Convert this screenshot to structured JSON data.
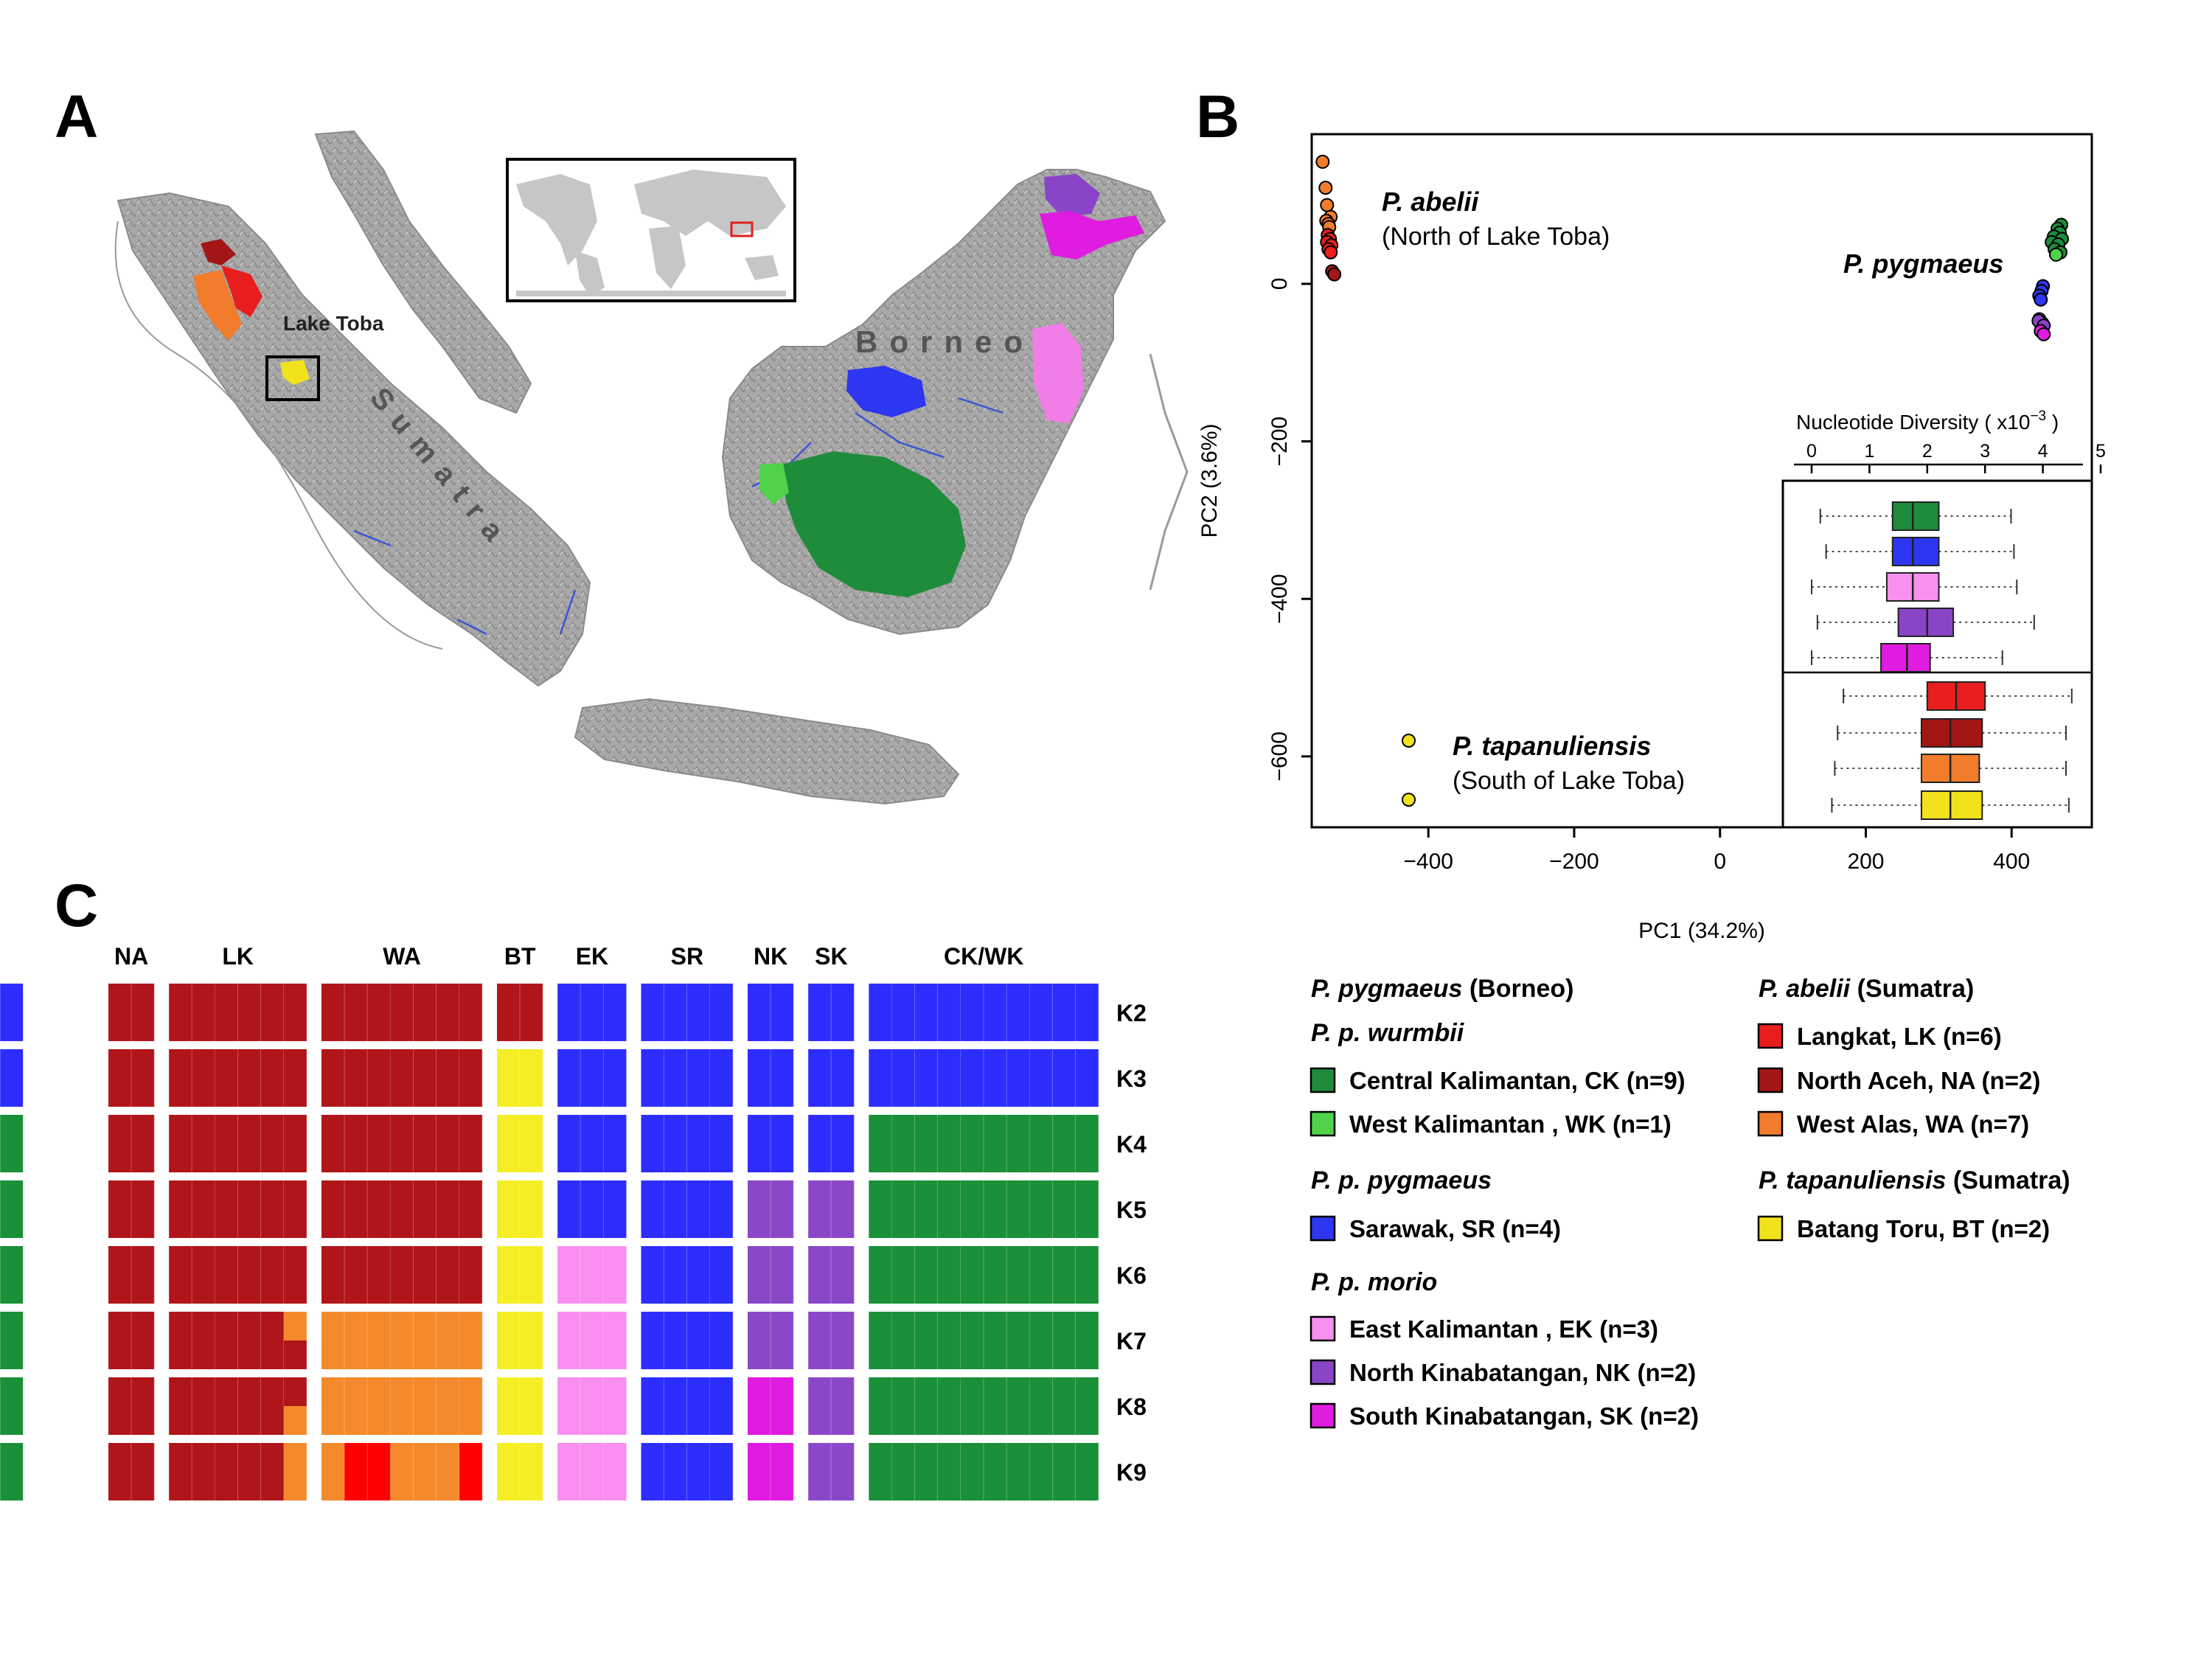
{
  "panels": {
    "a": "A",
    "b": "B",
    "c": "C"
  },
  "map": {
    "labels": {
      "lake_toba": "Lake Toba",
      "borneo": "Borneo",
      "sumatra": "Sumatra"
    },
    "colors": {
      "land": "#a8a8a8",
      "inset_land": "#c6c6c6",
      "river": "#3a56d4",
      "NA": "#a31616",
      "LK": "#e81e1e",
      "WA": "#f07c2c",
      "BT": "#f2e21e",
      "CK": "#1e8c3a",
      "WK": "#50d24a",
      "SR": "#2d36f0",
      "NK": "#8a44c8",
      "SK": "#e01ce0",
      "EK": "#f07ee6"
    }
  },
  "pca": {
    "x_axis_label": "PC1 (34.2%)",
    "y_axis_label": "PC2 (3.6%)",
    "x_ticks": [
      "−400",
      "−200",
      "0",
      "200",
      "400"
    ],
    "y_ticks": [
      "0",
      "−200",
      "−400",
      "−600"
    ],
    "labels": {
      "abelii_name": "P. abelii",
      "abelii_note": "(North of Lake Toba)",
      "pygmaeus_name": "P. pygmaeus",
      "tapanuliensis_name": "P. tapanuliensis",
      "tapanuliensis_note": "(South of Lake Toba)"
    },
    "inset": {
      "title": "Nucleotide Diversity ( x10",
      "title_exp": "−3",
      "title_end": " )",
      "ticks": [
        "0",
        "1",
        "2",
        "3",
        "4",
        "5"
      ]
    }
  },
  "chart_data": [
    {
      "type": "scatter",
      "xlabel": "PC1 (34.2%)",
      "ylabel": "PC2 (3.6%)",
      "xlim": [
        -560,
        510
      ],
      "ylim": [
        -690,
        190
      ],
      "series": [
        {
          "name": "P. abelii",
          "points": [
            {
              "x": -545,
              "y": 155,
              "pop": "WA"
            },
            {
              "x": -541,
              "y": 122,
              "pop": "WA"
            },
            {
              "x": -539,
              "y": 100,
              "pop": "WA"
            },
            {
              "x": -534,
              "y": 85,
              "pop": "WA"
            },
            {
              "x": -540,
              "y": 80,
              "pop": "WA"
            },
            {
              "x": -537,
              "y": 76,
              "pop": "WA"
            },
            {
              "x": -536,
              "y": 72,
              "pop": "WA"
            },
            {
              "x": -538,
              "y": 62,
              "pop": "LK"
            },
            {
              "x": -535,
              "y": 57,
              "pop": "LK"
            },
            {
              "x": -539,
              "y": 53,
              "pop": "LK"
            },
            {
              "x": -533,
              "y": 49,
              "pop": "LK"
            },
            {
              "x": -537,
              "y": 44,
              "pop": "LK"
            },
            {
              "x": -534,
              "y": 40,
              "pop": "LK"
            },
            {
              "x": -532,
              "y": 16,
              "pop": "NA"
            },
            {
              "x": -529,
              "y": 12,
              "pop": "NA"
            }
          ]
        },
        {
          "name": "P. pygmaeus",
          "points": [
            {
              "x": 468,
              "y": 75,
              "pop": "CK"
            },
            {
              "x": 463,
              "y": 70,
              "pop": "CK"
            },
            {
              "x": 466,
              "y": 65,
              "pop": "CK"
            },
            {
              "x": 458,
              "y": 60,
              "pop": "CK"
            },
            {
              "x": 469,
              "y": 57,
              "pop": "CK"
            },
            {
              "x": 455,
              "y": 53,
              "pop": "CK"
            },
            {
              "x": 464,
              "y": 50,
              "pop": "CK"
            },
            {
              "x": 459,
              "y": 44,
              "pop": "CK"
            },
            {
              "x": 467,
              "y": 40,
              "pop": "CK"
            },
            {
              "x": 461,
              "y": 37,
              "pop": "WK"
            },
            {
              "x": 443,
              "y": -3,
              "pop": "SR"
            },
            {
              "x": 441,
              "y": -9,
              "pop": "SR"
            },
            {
              "x": 438,
              "y": -15,
              "pop": "SR"
            },
            {
              "x": 440,
              "y": -20,
              "pop": "SR"
            },
            {
              "x": 438,
              "y": -45,
              "pop": "EK"
            },
            {
              "x": 442,
              "y": -50,
              "pop": "EK"
            },
            {
              "x": 441,
              "y": -56,
              "pop": "EK"
            },
            {
              "x": 437,
              "y": -47,
              "pop": "NK"
            },
            {
              "x": 444,
              "y": -53,
              "pop": "NK"
            },
            {
              "x": 440,
              "y": -60,
              "pop": "SK"
            },
            {
              "x": 444,
              "y": -64,
              "pop": "SK"
            }
          ]
        },
        {
          "name": "P. tapanuliensis",
          "points": [
            {
              "x": -427,
              "y": -580,
              "pop": "BT"
            },
            {
              "x": -427,
              "y": -655,
              "pop": "BT"
            }
          ]
        }
      ]
    },
    {
      "type": "boxplot",
      "title": "Nucleotide Diversity ( x10−3 )",
      "xlim": [
        0,
        5
      ],
      "groups": [
        {
          "pop": "CK",
          "whisker_low": 0.15,
          "q1": 1.4,
          "median": 1.75,
          "q3": 2.2,
          "whisker_high": 3.45
        },
        {
          "pop": "SR",
          "whisker_low": 0.25,
          "q1": 1.4,
          "median": 1.75,
          "q3": 2.2,
          "whisker_high": 3.5
        },
        {
          "pop": "EK",
          "whisker_low": 0.0,
          "q1": 1.3,
          "median": 1.75,
          "q3": 2.2,
          "whisker_high": 3.55
        },
        {
          "pop": "NK",
          "whisker_low": 0.1,
          "q1": 1.5,
          "median": 2.0,
          "q3": 2.45,
          "whisker_high": 3.85
        },
        {
          "pop": "SK",
          "whisker_low": 0.0,
          "q1": 1.2,
          "median": 1.65,
          "q3": 2.05,
          "whisker_high": 3.3
        },
        {
          "pop": "LK",
          "whisker_low": 0.55,
          "q1": 2.0,
          "median": 2.5,
          "q3": 3.0,
          "whisker_high": 4.5
        },
        {
          "pop": "NA",
          "whisker_low": 0.45,
          "q1": 1.9,
          "median": 2.4,
          "q3": 2.95,
          "whisker_high": 4.4
        },
        {
          "pop": "WA",
          "whisker_low": 0.4,
          "q1": 1.9,
          "median": 2.4,
          "q3": 2.9,
          "whisker_high": 4.4
        },
        {
          "pop": "BT",
          "whisker_low": 0.35,
          "q1": 1.9,
          "median": 2.4,
          "q3": 2.95,
          "whisker_high": 4.45
        }
      ]
    },
    {
      "type": "heatmap",
      "groups": [
        {
          "label": "NA",
          "n": 2
        },
        {
          "label": "LK",
          "n": 6
        },
        {
          "label": "WA",
          "n": 7
        },
        {
          "label": "BT",
          "n": 2
        },
        {
          "label": "EK",
          "n": 3
        },
        {
          "label": "SR",
          "n": 4
        },
        {
          "label": "NK",
          "n": 2
        },
        {
          "label": "SK",
          "n": 2
        },
        {
          "label": "CK/WK",
          "n": 10
        }
      ],
      "rows": [
        {
          "k": "K2",
          "cells": [
            "D",
            "D",
            "D",
            "D",
            "D",
            "D",
            "D",
            "D",
            "D",
            "D",
            "D",
            "D",
            "D",
            "D",
            "D",
            "D",
            "D",
            "B",
            "B",
            "B",
            "B",
            "B",
            "B",
            "B",
            "B",
            "B",
            "B",
            "B",
            "B",
            "B",
            "B",
            "B",
            "B",
            "B",
            "B",
            "B",
            "B",
            "B",
            "B"
          ]
        },
        {
          "k": "K3",
          "cells": [
            "D",
            "D",
            "D",
            "D",
            "D",
            "D",
            "D",
            "D",
            "D",
            "D",
            "D",
            "D",
            "D",
            "D",
            "D",
            "Y",
            "Y",
            "B",
            "B",
            "B",
            "B",
            "B",
            "B",
            "B",
            "B",
            "B",
            "B",
            "B",
            "B",
            "B",
            "B",
            "B",
            "B",
            "B",
            "B",
            "B",
            "B",
            "B",
            "B"
          ]
        },
        {
          "k": "K4",
          "cells": [
            "D",
            "D",
            "D",
            "D",
            "D",
            "D",
            "D",
            "D",
            "D",
            "D",
            "D",
            "D",
            "D",
            "D",
            "D",
            "Y",
            "Y",
            "B",
            "B",
            "B",
            "B",
            "B",
            "B",
            "B",
            "B",
            "B",
            "B",
            "B",
            "G",
            "G",
            "G",
            "G",
            "G",
            "G",
            "G",
            "G",
            "G",
            "G",
            "G"
          ]
        },
        {
          "k": "K5",
          "cells": [
            "D",
            "D",
            "D",
            "D",
            "D",
            "D",
            "D",
            "D",
            "D",
            "D",
            "D",
            "D",
            "D",
            "D",
            "D",
            "Y",
            "Y",
            "B",
            "B",
            "B",
            "B",
            "B",
            "B",
            "B",
            "P",
            "P",
            "P",
            "P",
            "G",
            "G",
            "G",
            "G",
            "G",
            "G",
            "G",
            "G",
            "G",
            "G",
            "G"
          ]
        },
        {
          "k": "K6",
          "cells": [
            "D",
            "D",
            "D",
            "D",
            "D",
            "D",
            "D",
            "D",
            "D",
            "D",
            "D",
            "D",
            "D",
            "D",
            "D",
            "Y",
            "Y",
            "L",
            "L",
            "L",
            "B",
            "B",
            "B",
            "B",
            "P",
            "P",
            "P",
            "P",
            "G",
            "G",
            "G",
            "G",
            "G",
            "G",
            "G",
            "G",
            "G",
            "G",
            "G"
          ]
        },
        {
          "k": "K7",
          "cells": [
            "D",
            "D",
            "D",
            "D",
            "D",
            "D",
            "D",
            "D/O",
            "O",
            "O",
            "O",
            "O",
            "O",
            "O",
            "O",
            "Y",
            "Y",
            "L",
            "L",
            "L",
            "B",
            "B",
            "B",
            "B",
            "P",
            "P",
            "P",
            "P",
            "G",
            "G",
            "G",
            "G",
            "G",
            "G",
            "G",
            "G",
            "G",
            "G",
            "G"
          ]
        },
        {
          "k": "K8",
          "cells": [
            "D",
            "D",
            "D",
            "D",
            "D",
            "D",
            "D",
            "O/D",
            "O",
            "O",
            "O",
            "O",
            "O",
            "O",
            "O",
            "Y",
            "Y",
            "L",
            "L",
            "L",
            "B",
            "B",
            "B",
            "B",
            "M",
            "M",
            "P",
            "P",
            "G",
            "G",
            "G",
            "G",
            "G",
            "G",
            "G",
            "G",
            "G",
            "G",
            "G"
          ]
        },
        {
          "k": "K9",
          "cells": [
            "D",
            "D",
            "D",
            "D",
            "D",
            "D",
            "D",
            "O",
            "O",
            "R",
            "R",
            "O",
            "O",
            "O",
            "R",
            "Y",
            "Y",
            "L",
            "L",
            "L",
            "B",
            "B",
            "B",
            "B",
            "M",
            "M",
            "P",
            "P",
            "G",
            "G",
            "G",
            "G",
            "G",
            "G",
            "G",
            "G",
            "G",
            "G",
            "G"
          ]
        }
      ],
      "palette": {
        "D": "#b01519",
        "O": "#f58a2c",
        "R": "#ff0000",
        "Y": "#f5ee25",
        "L": "#fa8ef0",
        "B": "#2d2dff",
        "P": "#8a48c8",
        "M": "#e01ae0",
        "G": "#1a9038"
      }
    }
  ],
  "legend": {
    "pygmaeus_title_italic": "P. pygmaeus",
    "pygmaeus_title_rest": " (Borneo)",
    "wurmbii": "P. p. wurmbii",
    "pp_pygmaeus": "P. p. pygmaeus",
    "morio": "P. p. morio",
    "abelii_title_italic": "P. abelii",
    "abelii_title_rest": " (Sumatra)",
    "tap_title_italic": "P. tapanuliensis",
    "tap_title_rest": " (Sumatra)",
    "entries": [
      {
        "id": "CK",
        "label": "Central Kalimantan, CK (n=9)",
        "color": "#1e8c3a"
      },
      {
        "id": "WK",
        "label": "West Kalimantan , WK (n=1)",
        "color": "#50d24a"
      },
      {
        "id": "SR",
        "label": "Sarawak, SR (n=4)",
        "color": "#2d36f0"
      },
      {
        "id": "EK",
        "label": "East Kalimantan , EK (n=3)",
        "color": "#f890f0"
      },
      {
        "id": "NK",
        "label": "North Kinabatangan, NK (n=2)",
        "color": "#8a44c8"
      },
      {
        "id": "SK",
        "label": "South Kinabatangan, SK (n=2)",
        "color": "#e01ce0"
      },
      {
        "id": "LK",
        "label": "Langkat, LK (n=6)",
        "color": "#e81e1e"
      },
      {
        "id": "NA",
        "label": "North Aceh, NA (n=2)",
        "color": "#a31616"
      },
      {
        "id": "WA",
        "label": "West Alas, WA (n=7)",
        "color": "#f07c2c"
      },
      {
        "id": "BT",
        "label": "Batang Toru, BT (n=2)",
        "color": "#f2e21e"
      }
    ]
  }
}
